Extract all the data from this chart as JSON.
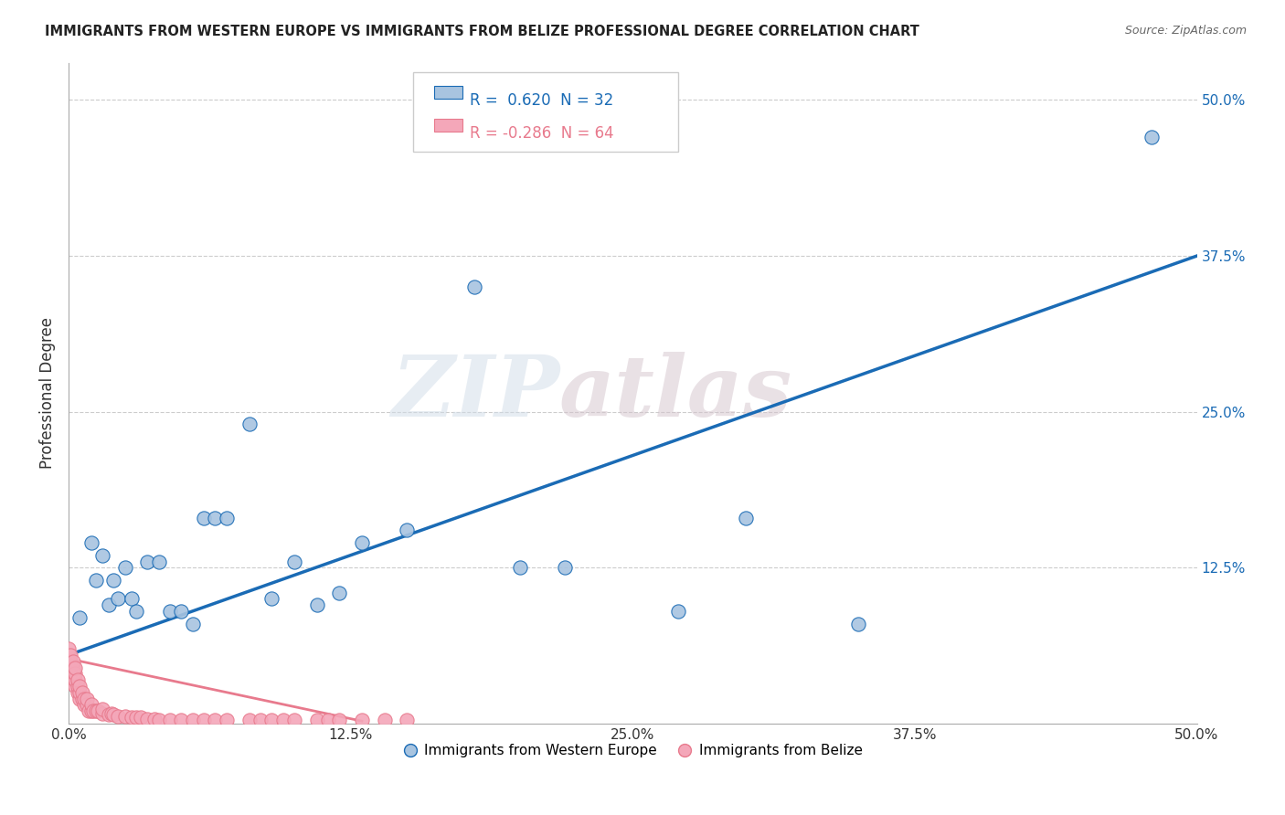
{
  "title": "IMMIGRANTS FROM WESTERN EUROPE VS IMMIGRANTS FROM BELIZE PROFESSIONAL DEGREE CORRELATION CHART",
  "source": "Source: ZipAtlas.com",
  "ylabel": "Professional Degree",
  "right_yticks": [
    "50.0%",
    "37.5%",
    "25.0%",
    "12.5%"
  ],
  "right_ytick_vals": [
    0.5,
    0.375,
    0.25,
    0.125
  ],
  "legend_r1": "R =  0.620  N = 32",
  "legend_r2": "R = -0.286  N = 64",
  "xlim": [
    0.0,
    0.5
  ],
  "ylim": [
    0.0,
    0.53
  ],
  "blue_scatter_x": [
    0.005,
    0.01,
    0.012,
    0.015,
    0.018,
    0.02,
    0.022,
    0.025,
    0.028,
    0.03,
    0.035,
    0.04,
    0.045,
    0.05,
    0.055,
    0.06,
    0.065,
    0.07,
    0.08,
    0.09,
    0.1,
    0.11,
    0.12,
    0.13,
    0.15,
    0.18,
    0.2,
    0.22,
    0.27,
    0.3,
    0.35,
    0.48
  ],
  "blue_scatter_y": [
    0.085,
    0.145,
    0.115,
    0.135,
    0.095,
    0.115,
    0.1,
    0.125,
    0.1,
    0.09,
    0.13,
    0.13,
    0.09,
    0.09,
    0.08,
    0.165,
    0.165,
    0.165,
    0.24,
    0.1,
    0.13,
    0.095,
    0.105,
    0.145,
    0.155,
    0.35,
    0.125,
    0.125,
    0.09,
    0.165,
    0.08,
    0.47
  ],
  "pink_scatter_x": [
    0.0,
    0.0,
    0.0,
    0.0,
    0.001,
    0.001,
    0.001,
    0.001,
    0.002,
    0.002,
    0.002,
    0.002,
    0.003,
    0.003,
    0.003,
    0.003,
    0.004,
    0.004,
    0.004,
    0.005,
    0.005,
    0.005,
    0.006,
    0.006,
    0.007,
    0.007,
    0.008,
    0.008,
    0.009,
    0.01,
    0.01,
    0.011,
    0.012,
    0.013,
    0.015,
    0.015,
    0.018,
    0.019,
    0.02,
    0.022,
    0.025,
    0.028,
    0.03,
    0.032,
    0.035,
    0.038,
    0.04,
    0.045,
    0.05,
    0.055,
    0.06,
    0.065,
    0.07,
    0.08,
    0.085,
    0.09,
    0.095,
    0.1,
    0.11,
    0.115,
    0.12,
    0.13,
    0.14,
    0.15
  ],
  "pink_scatter_y": [
    0.045,
    0.05,
    0.055,
    0.06,
    0.04,
    0.045,
    0.05,
    0.055,
    0.035,
    0.04,
    0.045,
    0.05,
    0.03,
    0.035,
    0.04,
    0.045,
    0.025,
    0.03,
    0.035,
    0.02,
    0.025,
    0.03,
    0.02,
    0.025,
    0.015,
    0.02,
    0.015,
    0.02,
    0.01,
    0.01,
    0.015,
    0.01,
    0.01,
    0.01,
    0.008,
    0.012,
    0.007,
    0.008,
    0.007,
    0.006,
    0.006,
    0.005,
    0.005,
    0.005,
    0.004,
    0.004,
    0.003,
    0.003,
    0.003,
    0.003,
    0.003,
    0.003,
    0.003,
    0.003,
    0.003,
    0.003,
    0.003,
    0.003,
    0.003,
    0.003,
    0.003,
    0.003,
    0.003,
    0.003
  ],
  "blue_color": "#a8c4e0",
  "pink_color": "#f4a7b9",
  "blue_line_color": "#1a6bb5",
  "pink_line_color": "#e87a8d",
  "background_color": "#ffffff",
  "grid_color": "#cccccc",
  "watermark_zip": "ZIP",
  "watermark_atlas": "atlas",
  "blue_line_x": [
    0.0,
    0.5
  ],
  "blue_line_y": [
    0.055,
    0.375
  ],
  "pink_line_x": [
    0.0,
    0.13
  ],
  "pink_line_y": [
    0.052,
    0.002
  ],
  "xticks": [
    0.0,
    0.125,
    0.25,
    0.375,
    0.5
  ],
  "xtick_labels": [
    "0.0%",
    "12.5%",
    "25.0%",
    "37.5%",
    "50.0%"
  ]
}
